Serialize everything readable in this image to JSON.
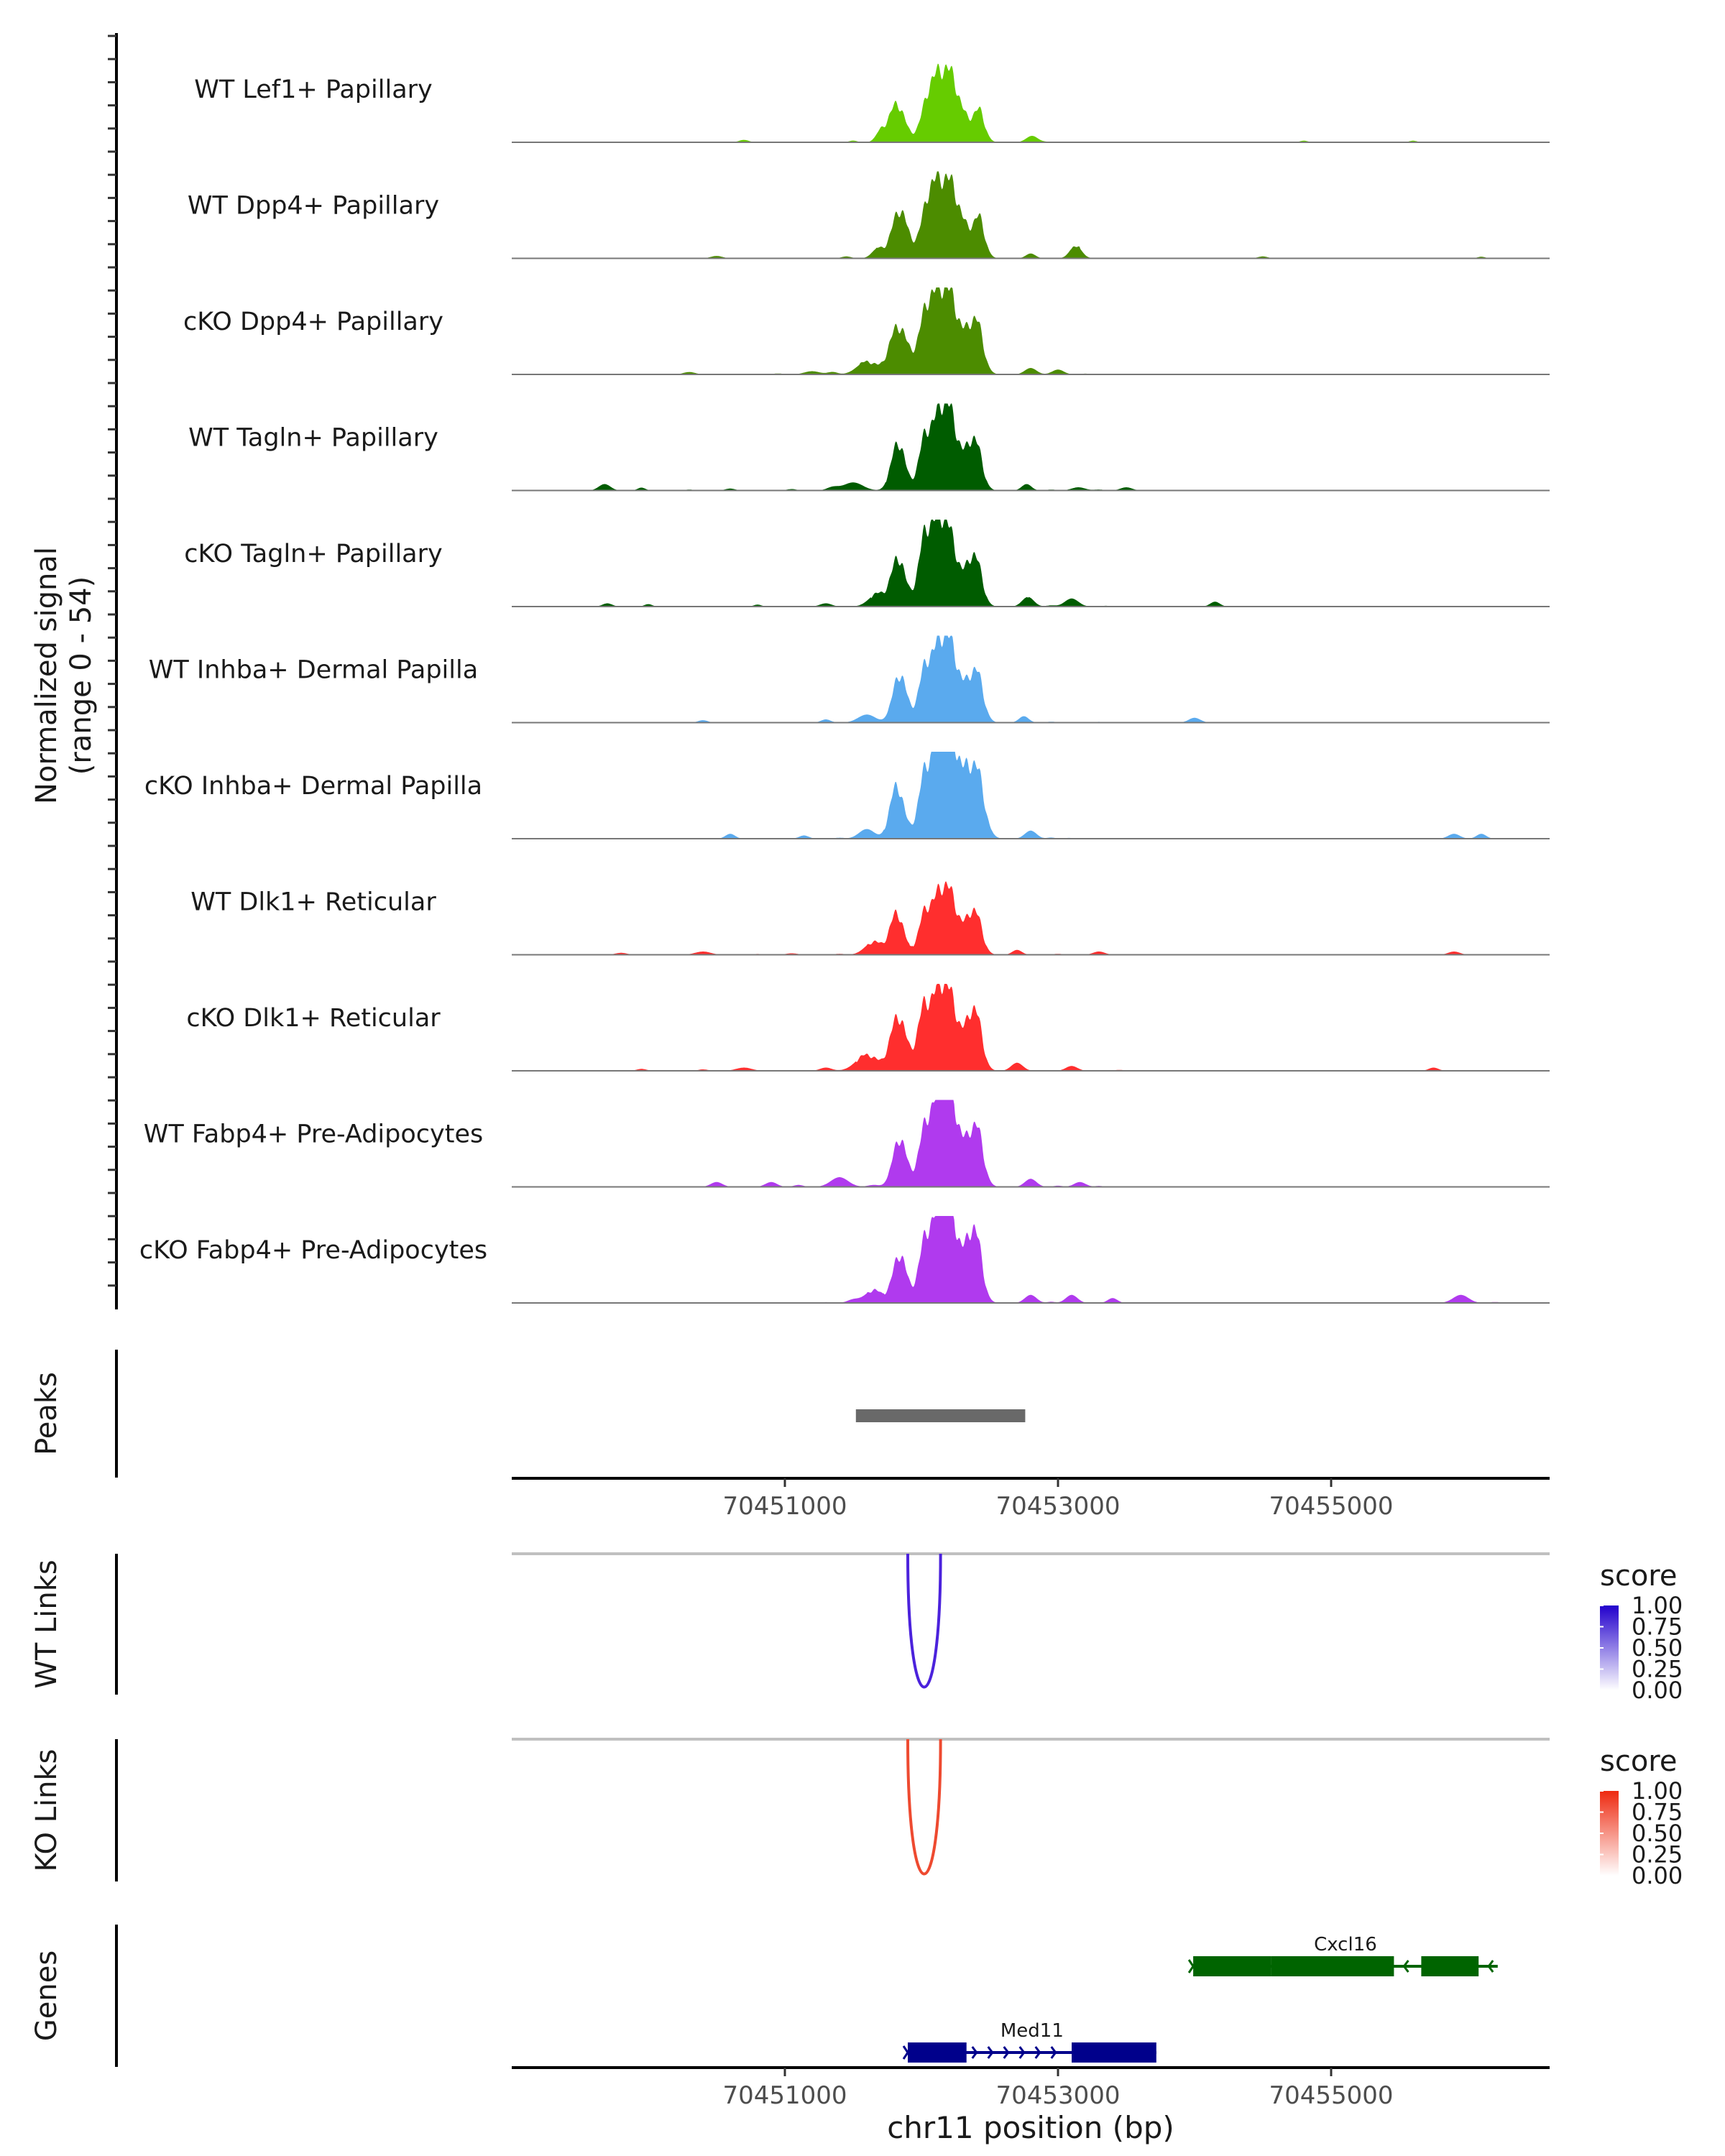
{
  "chart_data": {
    "type": "area",
    "title": "",
    "xlabel": "chr11 position (bp)",
    "ylabel": "Normalized signal",
    "ylabel_range": "(range 0 - 54)",
    "xlim": [
      70449000,
      70456600
    ],
    "ylim": [
      0,
      54
    ],
    "x_ticks": [
      70451000,
      70453000,
      70455000
    ],
    "x_tick_labels": [
      "70451000",
      "70453000",
      "70455000"
    ],
    "coverage_tracks": [
      {
        "name": "WT Lef1+ Papillary",
        "color": "#66cc00",
        "peaks": [
          [
            70451820,
            24,
            80
          ],
          [
            70452180,
            46,
            140
          ],
          [
            70452420,
            18,
            60
          ],
          [
            70452050,
            14,
            70
          ],
          [
            70452810,
            4,
            60
          ],
          [
            70450700,
            1.5,
            50
          ],
          [
            70454800,
            1,
            40
          ],
          [
            70455600,
            1,
            40
          ]
        ],
        "bumps": [
          [
            70451500,
            0.18,
            40
          ],
          [
            70451700,
            1.0,
            50
          ],
          [
            70452920,
            0.05,
            40
          ],
          [
            70453100,
            0.05,
            60
          ],
          [
            70453800,
            0.04,
            40
          ],
          [
            70455100,
            0.03,
            40
          ]
        ]
      },
      {
        "name": "WT Dpp4+ Papillary",
        "color": "#4c8c00",
        "peaks": [
          [
            70451840,
            30,
            80
          ],
          [
            70452180,
            50,
            150
          ],
          [
            70452420,
            22,
            60
          ],
          [
            70452050,
            18,
            70
          ],
          [
            70453130,
            8,
            60
          ],
          [
            70452800,
            3,
            50
          ],
          [
            70450500,
            1.5,
            60
          ],
          [
            70454500,
            1.2,
            50
          ],
          [
            70456100,
            1,
            40
          ]
        ],
        "bumps": [
          [
            70451450,
            0.2,
            50
          ],
          [
            70451680,
            1.0,
            60
          ],
          [
            70452950,
            0.06,
            50
          ],
          [
            70453300,
            0.04,
            60
          ],
          [
            70453850,
            0.04,
            40
          ],
          [
            70450800,
            0.03,
            50
          ]
        ]
      },
      {
        "name": "cKO Dpp4+ Papillary",
        "color": "#4c8c00",
        "peaks": [
          [
            70451830,
            30,
            90
          ],
          [
            70452170,
            55,
            150
          ],
          [
            70452400,
            30,
            70
          ],
          [
            70452030,
            20,
            70
          ],
          [
            70451600,
            8,
            100
          ],
          [
            70452800,
            4,
            60
          ],
          [
            70453000,
            3,
            60
          ],
          [
            70451200,
            2,
            80
          ],
          [
            70450300,
            1.5,
            60
          ]
        ],
        "bumps": [
          [
            70451350,
            0.25,
            50
          ],
          [
            70450950,
            0.1,
            50
          ],
          [
            70453200,
            0.08,
            50
          ],
          [
            70453500,
            0.05,
            50
          ],
          [
            70454200,
            0.04,
            50
          ],
          [
            70455300,
            0.03,
            40
          ]
        ]
      },
      {
        "name": "WT Tagln+ Papillary",
        "color": "#005c00",
        "peaks": [
          [
            70451830,
            30,
            70
          ],
          [
            70452170,
            56,
            130
          ],
          [
            70452390,
            30,
            70
          ],
          [
            70452020,
            20,
            60
          ],
          [
            70451500,
            5,
            100
          ],
          [
            70452770,
            4,
            50
          ],
          [
            70449680,
            4,
            60
          ],
          [
            70451350,
            2,
            60
          ],
          [
            70453150,
            2,
            70
          ],
          [
            70453500,
            2,
            60
          ]
        ],
        "bumps": [
          [
            70449950,
            0.3,
            40
          ],
          [
            70450600,
            0.2,
            50
          ],
          [
            70451050,
            0.15,
            50
          ],
          [
            70452950,
            0.1,
            50
          ],
          [
            70453300,
            0.1,
            50
          ],
          [
            70450300,
            0.1,
            40
          ]
        ]
      },
      {
        "name": "cKO Tagln+ Papillary",
        "color": "#005c00",
        "peaks": [
          [
            70451830,
            30,
            70
          ],
          [
            70452150,
            57,
            140
          ],
          [
            70452390,
            30,
            70
          ],
          [
            70452020,
            22,
            60
          ],
          [
            70451680,
            8,
            90
          ],
          [
            70452780,
            6,
            60
          ],
          [
            70453100,
            5,
            70
          ],
          [
            70449700,
            2,
            50
          ],
          [
            70451300,
            2,
            60
          ],
          [
            70454150,
            3,
            50
          ]
        ],
        "bumps": [
          [
            70450000,
            0.25,
            40
          ],
          [
            70450800,
            0.2,
            40
          ],
          [
            70452950,
            0.12,
            50
          ],
          [
            70453350,
            0.08,
            50
          ],
          [
            70454700,
            0.06,
            40
          ],
          [
            70455950,
            0.06,
            40
          ],
          [
            70456100,
            0.05,
            40
          ]
        ]
      },
      {
        "name": "WT Inhba+ Dermal Papilla",
        "color": "#5aaaee",
        "peaks": [
          [
            70451840,
            30,
            70
          ],
          [
            70452170,
            56,
            140
          ],
          [
            70452400,
            30,
            70
          ],
          [
            70452020,
            18,
            60
          ],
          [
            70451600,
            5,
            90
          ],
          [
            70452750,
            4,
            50
          ],
          [
            70454000,
            3,
            60
          ],
          [
            70451300,
            2,
            50
          ],
          [
            70450400,
            1.5,
            50
          ]
        ],
        "bumps": [
          [
            70452950,
            0.1,
            50
          ],
          [
            70453300,
            0.08,
            40
          ],
          [
            70450750,
            0.05,
            40
          ],
          [
            70455600,
            0.05,
            40
          ],
          [
            70455900,
            0.05,
            40
          ],
          [
            70454400,
            0.04,
            40
          ]
        ]
      },
      {
        "name": "cKO Inhba+ Dermal Papilla",
        "color": "#5aaaee",
        "peaks": [
          [
            70451820,
            33,
            70
          ],
          [
            70452180,
            72,
            150
          ],
          [
            70452400,
            38,
            80
          ],
          [
            70452020,
            20,
            60
          ],
          [
            70451600,
            6,
            80
          ],
          [
            70452800,
            5,
            60
          ],
          [
            70450600,
            3,
            50
          ],
          [
            70451140,
            2,
            50
          ],
          [
            70455900,
            3,
            60
          ],
          [
            70456100,
            3,
            50
          ]
        ],
        "bumps": [
          [
            70452950,
            0.12,
            40
          ],
          [
            70453080,
            0.08,
            40
          ],
          [
            70451400,
            0.1,
            50
          ]
        ]
      },
      {
        "name": "WT Dlk1+ Reticular",
        "color": "#ff2e2e",
        "peaks": [
          [
            70451820,
            26,
            70
          ],
          [
            70452170,
            44,
            130
          ],
          [
            70452390,
            26,
            70
          ],
          [
            70452020,
            16,
            60
          ],
          [
            70451650,
            8,
            90
          ],
          [
            70452700,
            3,
            50
          ],
          [
            70450400,
            2,
            80
          ],
          [
            70453300,
            2,
            60
          ],
          [
            70455900,
            2,
            60
          ]
        ],
        "bumps": [
          [
            70449800,
            0.2,
            60
          ],
          [
            70451050,
            0.15,
            60
          ],
          [
            70451400,
            0.1,
            50
          ],
          [
            70450800,
            0.08,
            50
          ],
          [
            70453000,
            0.1,
            50
          ],
          [
            70454200,
            0.05,
            40
          ]
        ]
      },
      {
        "name": "cKO Dlk1+ Reticular",
        "color": "#ff2e2e",
        "peaks": [
          [
            70451830,
            34,
            80
          ],
          [
            70452160,
            56,
            140
          ],
          [
            70452390,
            36,
            70
          ],
          [
            70452010,
            22,
            60
          ],
          [
            70451600,
            10,
            110
          ],
          [
            70452700,
            5,
            60
          ],
          [
            70453100,
            3,
            60
          ],
          [
            70450700,
            2,
            80
          ],
          [
            70451300,
            2,
            60
          ],
          [
            70455750,
            2,
            50
          ]
        ],
        "bumps": [
          [
            70449950,
            0.2,
            50
          ],
          [
            70450400,
            0.15,
            50
          ],
          [
            70453450,
            0.1,
            50
          ],
          [
            70453900,
            0.06,
            40
          ],
          [
            70454600,
            0.06,
            40
          ],
          [
            70455000,
            0.05,
            40
          ]
        ]
      },
      {
        "name": "WT Fabp4+ Pre-Adipocytes",
        "color": "#b03aee",
        "peaks": [
          [
            70451840,
            30,
            70
          ],
          [
            70452170,
            66,
            140
          ],
          [
            70452400,
            35,
            70
          ],
          [
            70452020,
            18,
            60
          ],
          [
            70451400,
            6,
            90
          ],
          [
            70452800,
            5,
            60
          ],
          [
            70450500,
            3,
            60
          ],
          [
            70450900,
            3,
            60
          ],
          [
            70453160,
            3,
            60
          ]
        ],
        "bumps": [
          [
            70451100,
            0.2,
            50
          ],
          [
            70451650,
            0.2,
            60
          ],
          [
            70453000,
            0.12,
            50
          ],
          [
            70453300,
            0.1,
            40
          ]
        ]
      },
      {
        "name": "cKO Fabp4+ Pre-Adipocytes",
        "color": "#b03aee",
        "peaks": [
          [
            70451840,
            30,
            70
          ],
          [
            70452170,
            66,
            140
          ],
          [
            70452390,
            42,
            70
          ],
          [
            70452020,
            20,
            60
          ],
          [
            70451650,
            8,
            90
          ],
          [
            70452800,
            5,
            60
          ],
          [
            70453100,
            5,
            60
          ],
          [
            70455950,
            5,
            80
          ],
          [
            70451500,
            2,
            60
          ],
          [
            70453400,
            3,
            50
          ]
        ],
        "bumps": [
          [
            70452950,
            0.12,
            40
          ],
          [
            70456200,
            0.1,
            50
          ],
          [
            70451300,
            0.08,
            40
          ]
        ]
      }
    ],
    "peaks_track": {
      "label": "Peaks",
      "color": "#696969",
      "regions": [
        [
          70451520,
          70452760
        ]
      ]
    },
    "links_tracks": [
      {
        "label": "WT Links",
        "color": "#4b22dc",
        "links": [
          [
            70451900,
            70452140,
            1.0
          ]
        ],
        "legend": {
          "title": "score",
          "ticks": [
            "1.00",
            "0.75",
            "0.50",
            "0.25",
            "0.00"
          ],
          "color_low": "#ffffff",
          "color_high": "#2200cc"
        }
      },
      {
        "label": "KO Links",
        "color": "#ee4a30",
        "links": [
          [
            70451900,
            70452140,
            1.0
          ]
        ],
        "legend": {
          "title": "score",
          "ticks": [
            "1.00",
            "0.75",
            "0.50",
            "0.25",
            "0.00"
          ],
          "color_low": "#ffffff",
          "color_high": "#ee2a10"
        }
      }
    ],
    "genes_track": {
      "label": "Genes",
      "genes": [
        {
          "name": "Cxcl16",
          "strand": "-",
          "color": "#006400",
          "start": 70453990,
          "end": 70456220,
          "exons": [
            [
              70453990,
              70454560
            ],
            [
              70454560,
              70455460
            ],
            [
              70455660,
              70456080
            ]
          ]
        },
        {
          "name": "Med11",
          "strand": "+",
          "color": "#00008b",
          "start": 70451900,
          "end": 70453720,
          "exons": [
            [
              70451900,
              70452330
            ],
            [
              70453100,
              70453720
            ]
          ]
        }
      ]
    }
  }
}
